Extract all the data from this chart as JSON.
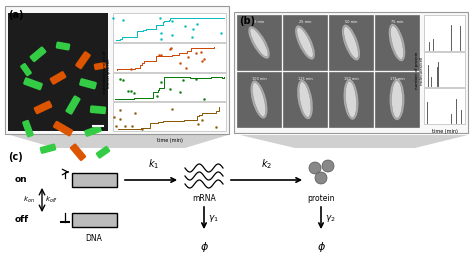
{
  "bg_color": "#ffffff",
  "funnel_color": "#d0d0d0",
  "panel_border": "#999999",
  "panel_bg": "#f8f8f8",
  "dark_img_bg": "#1c1c1c",
  "plot_border": "#aaaaaa",
  "cell_bg": "#686868",
  "dna_box_color": "#bbbbbb",
  "protein_color": "#888888",
  "label_a": "(a)",
  "label_b": "(b)",
  "label_c": "(c)",
  "step_colors": [
    "#00bbbb",
    "#cc4400",
    "#007700",
    "#885500"
  ],
  "bar_color": "#333333"
}
